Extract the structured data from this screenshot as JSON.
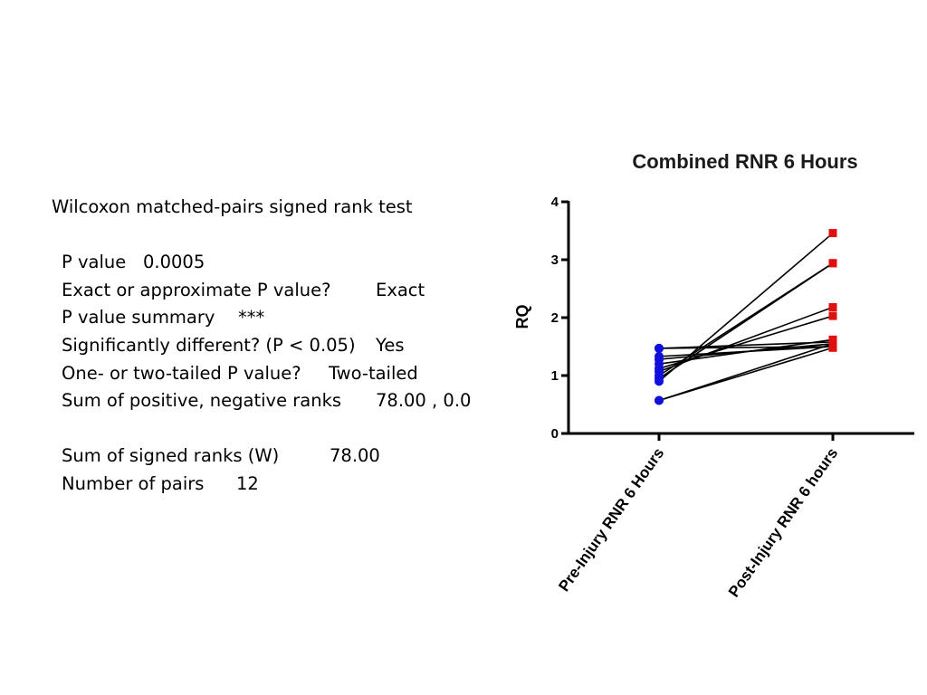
{
  "stats": {
    "title": "Wilcoxon matched-pairs signed rank test",
    "rows": [
      {
        "label": "P value",
        "value": "0.0005"
      },
      {
        "label": "Exact or approximate P value?",
        "value": "Exact"
      },
      {
        "label": "P value summary",
        "value": "***"
      },
      {
        "label": "Significantly different? (P < 0.05)",
        "value": "Yes"
      },
      {
        "label": "One- or two-tailed P value?",
        "value": "Two-tailed"
      },
      {
        "label": "Sum of positive, negative ranks",
        "value": "78.00 , 0.0"
      },
      {
        "label": "Sum of signed ranks (W)",
        "value": "78.00"
      },
      {
        "label": "Number of pairs",
        "value": "12"
      }
    ]
  },
  "chart_data": {
    "type": "scatter",
    "title": "Combined RNR 6 Hours",
    "xlabel": "",
    "ylabel": "RQ",
    "categories": [
      "Pre-Injury RNR 6 Hours",
      "Post-Injury RNR 6 hours"
    ],
    "ylim": [
      0,
      4
    ],
    "yticks": [
      0,
      1,
      2,
      3,
      4
    ],
    "grid": false,
    "legend": "none",
    "pre_color": "#1010dd",
    "post_color": "#e01010",
    "pairs": [
      [
        0.57,
        1.48
      ],
      [
        0.57,
        1.55
      ],
      [
        0.9,
        3.46
      ],
      [
        0.95,
        2.94
      ],
      [
        1.0,
        2.94
      ],
      [
        1.07,
        2.18
      ],
      [
        1.12,
        2.03
      ],
      [
        1.2,
        1.62
      ],
      [
        1.28,
        1.55
      ],
      [
        1.33,
        1.5
      ],
      [
        1.47,
        1.58
      ],
      [
        1.47,
        1.5
      ]
    ]
  }
}
